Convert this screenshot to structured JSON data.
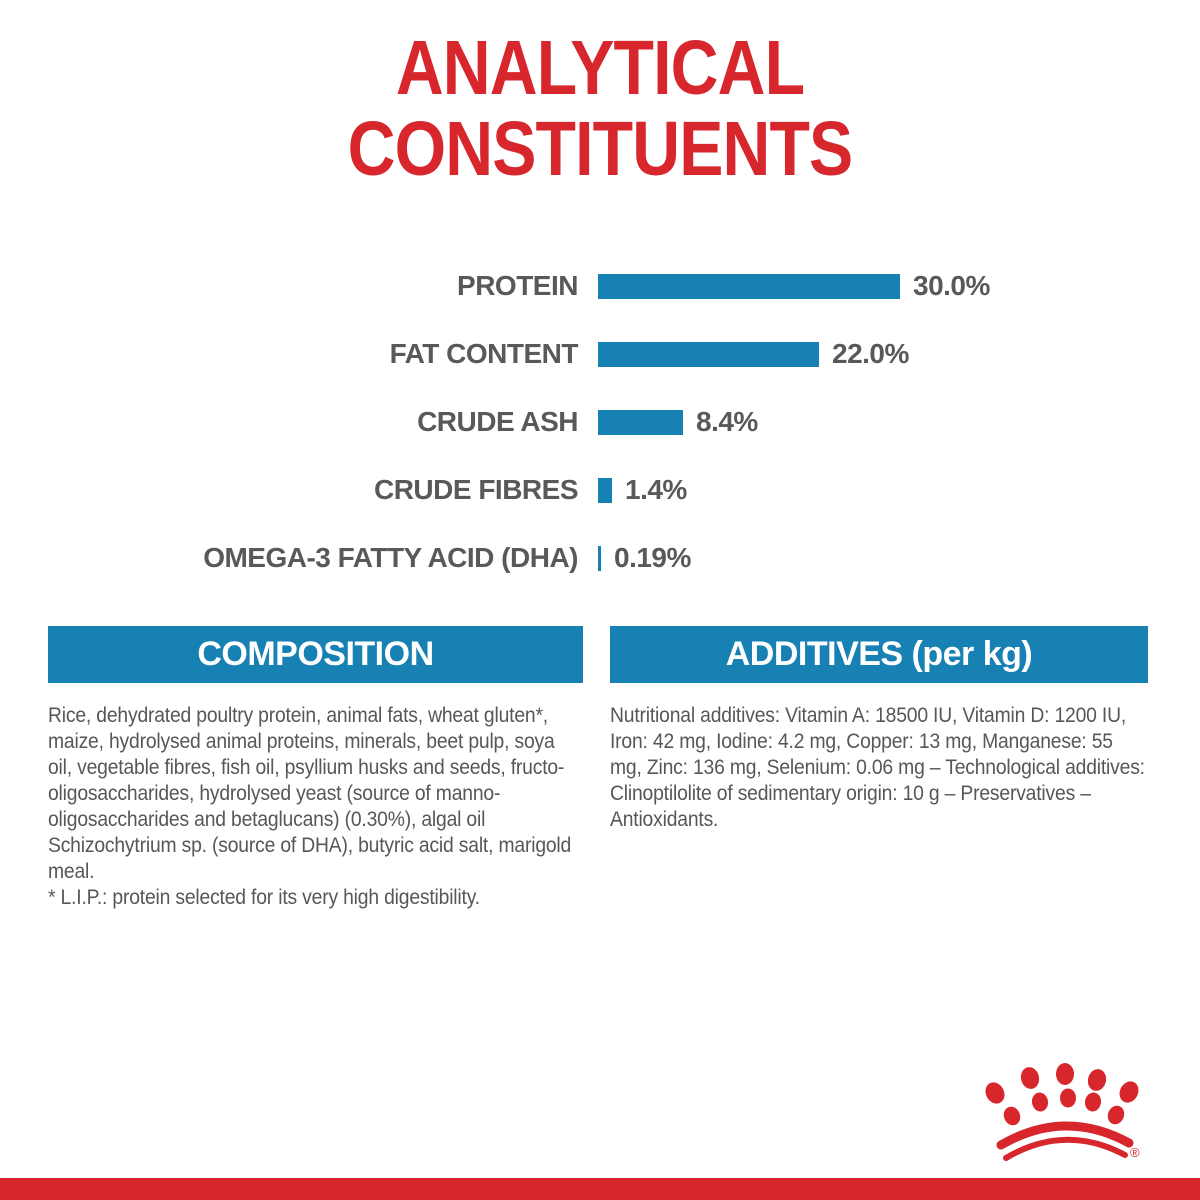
{
  "title": {
    "line1": "ANALYTICAL",
    "line2": "CONSTITUENTS"
  },
  "colors": {
    "red": "#d7262c",
    "blue": "#1781b3",
    "text_gray": "#58595b",
    "body_gray": "#57575a",
    "white": "#ffffff"
  },
  "chart_data": {
    "type": "bar",
    "orientation": "horizontal",
    "title": "ANALYTICAL CONSTITUENTS",
    "categories": [
      "PROTEIN",
      "FAT CONTENT",
      "CRUDE ASH",
      "CRUDE FIBRES",
      "OMEGA-3 FATTY ACID (DHA)"
    ],
    "values": [
      30.0,
      22.0,
      8.4,
      1.4,
      0.19
    ],
    "value_labels": [
      "30.0%",
      "22.0%",
      "8.4%",
      "1.4%",
      "0.19%"
    ],
    "unit": "%",
    "xlim": [
      0,
      30
    ],
    "bar_color": "#1781b3",
    "grid": false,
    "legend": false
  },
  "sections": {
    "composition": {
      "header": "COMPOSITION",
      "body": "Rice, dehydrated poultry protein, animal fats, wheat gluten*, maize, hydrolysed animal proteins, minerals, beet pulp, soya oil, vegetable fibres, fish oil, psyllium husks and seeds, fructo-oligosaccharides, hydrolysed yeast (source of manno-oligosaccharides and betaglucans) (0.30%), algal oil Schizochytrium sp. (source of DHA), butyric acid salt, marigold meal.",
      "footnote": "* L.I.P.: protein selected for its very high digestibility."
    },
    "additives": {
      "header": "ADDITIVES (per kg)",
      "body": "Nutritional additives: Vitamin A: 18500 IU, Vitamin D: 1200 IU, Iron: 42 mg, Iodine: 4.2 mg, Copper: 13 mg, Manganese: 55 mg, Zinc: 136 mg, Selenium: 0.06 mg – Technological additives: Clinoptilolite of sedimentary origin: 10 g – Preservatives – Antioxidants."
    }
  },
  "footer": {
    "logo": "royal-canin-crown",
    "registered_mark": "®"
  }
}
